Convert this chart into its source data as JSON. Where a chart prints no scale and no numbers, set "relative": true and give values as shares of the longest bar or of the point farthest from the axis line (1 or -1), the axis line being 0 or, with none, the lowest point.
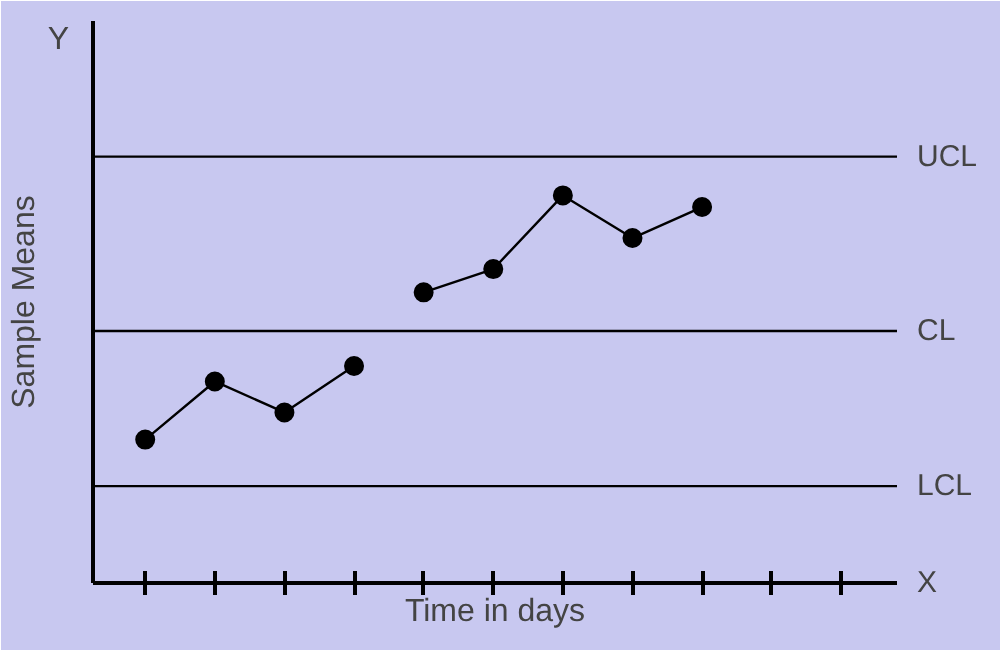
{
  "chart_data": {
    "type": "line",
    "relative": true,
    "xlabel": "Time in days",
    "ylabel": "Sample Means",
    "marker": "circle",
    "line_style": "solid",
    "categories": [
      null,
      null,
      null,
      null,
      null,
      null,
      null,
      null,
      null,
      null,
      null
    ],
    "series": [
      {
        "color": "#000000",
        "values": [
          0.37,
          0.52,
          0.44,
          0.56,
          null,
          null,
          null,
          null,
          null,
          null,
          null
        ]
      },
      {
        "color": "#000000",
        "values": [
          null,
          null,
          null,
          null,
          0.75,
          0.81,
          1,
          0.89,
          0.97,
          null,
          null
        ]
      }
    ],
    "ref_lines": [
      {
        "axis": "y",
        "value": 1.1,
        "label": "UCL"
      },
      {
        "axis": "y",
        "value": 0.65,
        "label": "CL"
      },
      {
        "axis": "y",
        "value": 0.25,
        "label": "LCL"
      }
    ],
    "annotations": [
      "Y",
      "X"
    ]
  }
}
